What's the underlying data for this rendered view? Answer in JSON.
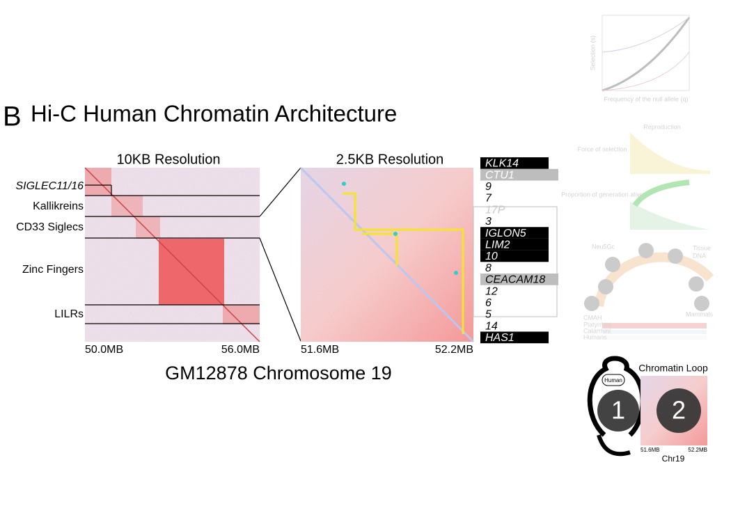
{
  "figure": {
    "letter": "B",
    "title": "Hi-C Human Chromatin Architecture",
    "caption": "GM12878 Chromosome 19",
    "left_panel": {
      "title": "10KB Resolution",
      "x_start": "50.0MB",
      "x_end": "56.0MB",
      "regions": [
        "SIGLEC11/16",
        "Kallikreins",
        "CD33 Siglecs",
        "Zinc Fingers",
        "LILRs"
      ]
    },
    "right_panel": {
      "title": "2.5KB Resolution",
      "x_start": "51.6MB",
      "x_end": "52.2MB"
    },
    "genes": [
      {
        "label": "KLK14",
        "bg": "#000000",
        "fg": "#ffffff"
      },
      {
        "label": "CTU1",
        "bg": "#bdbdbd",
        "fg": "#ffffff"
      },
      {
        "label": "9",
        "bg": "#ffffff",
        "fg": "#000000"
      },
      {
        "label": "7",
        "bg": "#ffffff",
        "fg": "#000000"
      },
      {
        "label": "17P",
        "bg": "#ffffff",
        "fg": "#c8c8c8"
      },
      {
        "label": "3",
        "bg": "#ffffff",
        "fg": "#000000"
      },
      {
        "label": "IGLON5",
        "bg": "#000000",
        "fg": "#ffffff"
      },
      {
        "label": "LIM2",
        "bg": "#000000",
        "fg": "#ffffff"
      },
      {
        "label": "10",
        "bg": "#000000",
        "fg": "#ffffff"
      },
      {
        "label": "8",
        "bg": "#ffffff",
        "fg": "#000000"
      },
      {
        "label": "CEACAM18",
        "bg": "#bdbdbd",
        "fg": "#000000"
      },
      {
        "label": "12",
        "bg": "#ffffff",
        "fg": "#000000"
      },
      {
        "label": "6",
        "bg": "#ffffff",
        "fg": "#000000"
      },
      {
        "label": "5",
        "bg": "#ffffff",
        "fg": "#000000"
      },
      {
        "label": "14",
        "bg": "#ffffff",
        "fg": "#000000"
      },
      {
        "label": "HAS1",
        "bg": "#000000",
        "fg": "#ffffff"
      }
    ]
  },
  "thumbnails": {
    "selection": {
      "x_label": "Frequency of the null allele (q)",
      "y_label": "Selection (s)"
    },
    "reproduction": {
      "title": "Reproduction",
      "force": "Force of selection",
      "alive": "Proportion of generation alive"
    },
    "neu5gc": {
      "title": "Neu5Gc",
      "tissue": "Tissue",
      "dna": "DNA",
      "cmah": "CMAH",
      "rows": [
        "Platyrrhini",
        "Catarrhini",
        "Humans"
      ],
      "mammals": "Mammals"
    },
    "loop": {
      "title": "Chromatin Loop",
      "tag": "Human",
      "steps": [
        "1",
        "2"
      ],
      "x_start": "51.6MB",
      "x_end": "52.2MB",
      "x_label": "Chr19"
    }
  }
}
